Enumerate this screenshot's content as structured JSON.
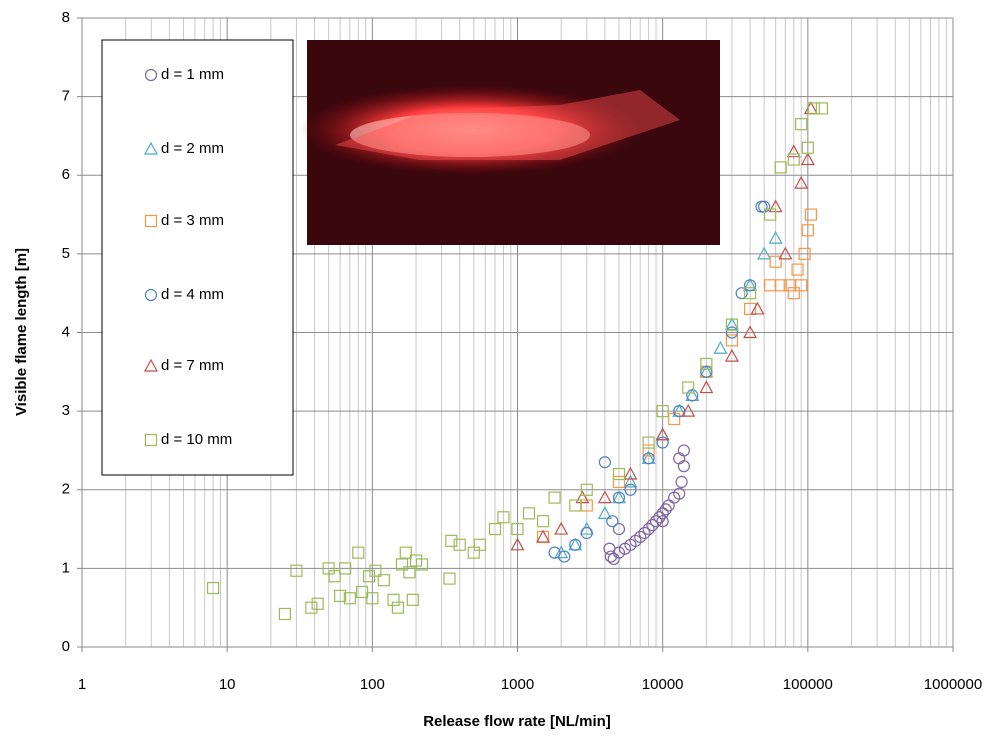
{
  "chart_data": {
    "type": "scatter",
    "x_label": "Release flow rate [NL/min]",
    "y_label": "Visible flame length [m]",
    "xlim": [
      1,
      1000000
    ],
    "xticks": [
      1,
      10,
      100,
      1000,
      10000,
      100000,
      1000000
    ],
    "ylim": [
      0,
      8
    ],
    "yticks": [
      0,
      1,
      2,
      3,
      4,
      5,
      6,
      7,
      8
    ],
    "x_scale": "log",
    "grid": true,
    "minor_grid": true,
    "legend": "upper left",
    "series": [
      {
        "name": "d = 1 mm",
        "color": "#8064a2",
        "marker": "circle",
        "x": [
          4300,
          4400,
          4600,
          5000,
          5000,
          5500,
          6000,
          6500,
          7000,
          7500,
          8000,
          8500,
          9000,
          9500,
          10000,
          10000,
          10500,
          11000,
          12000,
          13000,
          13000,
          13500,
          14000,
          14000
        ],
        "y": [
          1.25,
          1.15,
          1.12,
          1.2,
          1.5,
          1.25,
          1.3,
          1.35,
          1.4,
          1.45,
          1.5,
          1.55,
          1.6,
          1.65,
          1.7,
          1.6,
          1.75,
          1.8,
          1.9,
          1.95,
          2.4,
          2.1,
          2.3,
          2.5
        ]
      },
      {
        "name": "d = 2 mm",
        "color": "#4bacc6",
        "marker": "triangle",
        "x": [
          2000,
          2500,
          3000,
          4000,
          5000,
          6000,
          8000,
          10000,
          13000,
          16000,
          20000,
          25000,
          30000,
          40000,
          50000,
          60000
        ],
        "y": [
          1.2,
          1.3,
          1.5,
          1.7,
          1.9,
          2.1,
          2.4,
          2.7,
          3.0,
          3.2,
          3.5,
          3.8,
          4.1,
          4.6,
          5.0,
          5.2
        ]
      },
      {
        "name": "d = 3 mm",
        "color": "#f79646",
        "marker": "square",
        "x": [
          1500,
          3000,
          5000,
          8000,
          12000,
          20000,
          30000,
          40000,
          55000,
          60000,
          65000,
          75000,
          80000,
          85000,
          90000,
          95000,
          100000,
          105000
        ],
        "y": [
          1.4,
          1.8,
          2.1,
          2.5,
          2.9,
          3.5,
          3.9,
          4.3,
          4.6,
          4.9,
          4.6,
          4.6,
          4.5,
          4.8,
          4.6,
          5.0,
          5.3,
          5.5
        ]
      },
      {
        "name": "d = 4 mm",
        "color": "#4f81bd",
        "marker": "circle",
        "x": [
          1800,
          2100,
          2500,
          3000,
          4000,
          4500,
          5000,
          6000,
          8000,
          10000,
          13000,
          16000,
          20000,
          30000,
          35000,
          40000,
          48000,
          50000
        ],
        "y": [
          1.2,
          1.15,
          1.3,
          1.45,
          2.35,
          1.6,
          1.9,
          2.0,
          2.4,
          2.6,
          3.0,
          3.2,
          3.5,
          4.0,
          4.5,
          4.6,
          5.6,
          5.6
        ]
      },
      {
        "name": "d = 7 mm",
        "color": "#c0504d",
        "marker": "triangle",
        "x": [
          1000,
          1500,
          2000,
          2800,
          4000,
          6000,
          10000,
          15000,
          20000,
          30000,
          40000,
          45000,
          60000,
          70000,
          80000,
          90000,
          100000,
          105000
        ],
        "y": [
          1.3,
          1.4,
          1.5,
          1.9,
          1.9,
          2.2,
          2.7,
          3.0,
          3.3,
          3.7,
          4.0,
          4.3,
          5.6,
          5.0,
          6.3,
          5.9,
          6.2,
          6.85
        ]
      },
      {
        "name": "d = 10 mm",
        "color": "#9bbb59",
        "marker": "square",
        "x": [
          8,
          25,
          30,
          38,
          42,
          50,
          55,
          60,
          65,
          70,
          80,
          85,
          95,
          100,
          105,
          120,
          140,
          150,
          160,
          170,
          180,
          190,
          200,
          220,
          340,
          350,
          400,
          500,
          550,
          700,
          800,
          1000,
          1200,
          1500,
          1800,
          2500,
          3000,
          5000,
          8000,
          10000,
          15000,
          20000,
          30000,
          40000,
          55000,
          65000,
          80000,
          90000,
          100000,
          110000,
          125000
        ],
        "y": [
          0.75,
          0.42,
          0.97,
          0.5,
          0.55,
          1.0,
          0.9,
          0.65,
          1.0,
          0.62,
          1.2,
          0.7,
          0.9,
          0.62,
          0.97,
          0.85,
          0.6,
          0.5,
          1.05,
          1.2,
          0.95,
          0.6,
          1.1,
          1.05,
          0.87,
          1.35,
          1.3,
          1.2,
          1.3,
          1.5,
          1.65,
          1.5,
          1.7,
          1.6,
          1.9,
          1.8,
          2.0,
          2.2,
          2.6,
          3.0,
          3.3,
          3.6,
          4.1,
          4.5,
          5.5,
          6.1,
          6.2,
          6.65,
          6.35,
          6.85,
          6.85
        ]
      }
    ]
  }
}
